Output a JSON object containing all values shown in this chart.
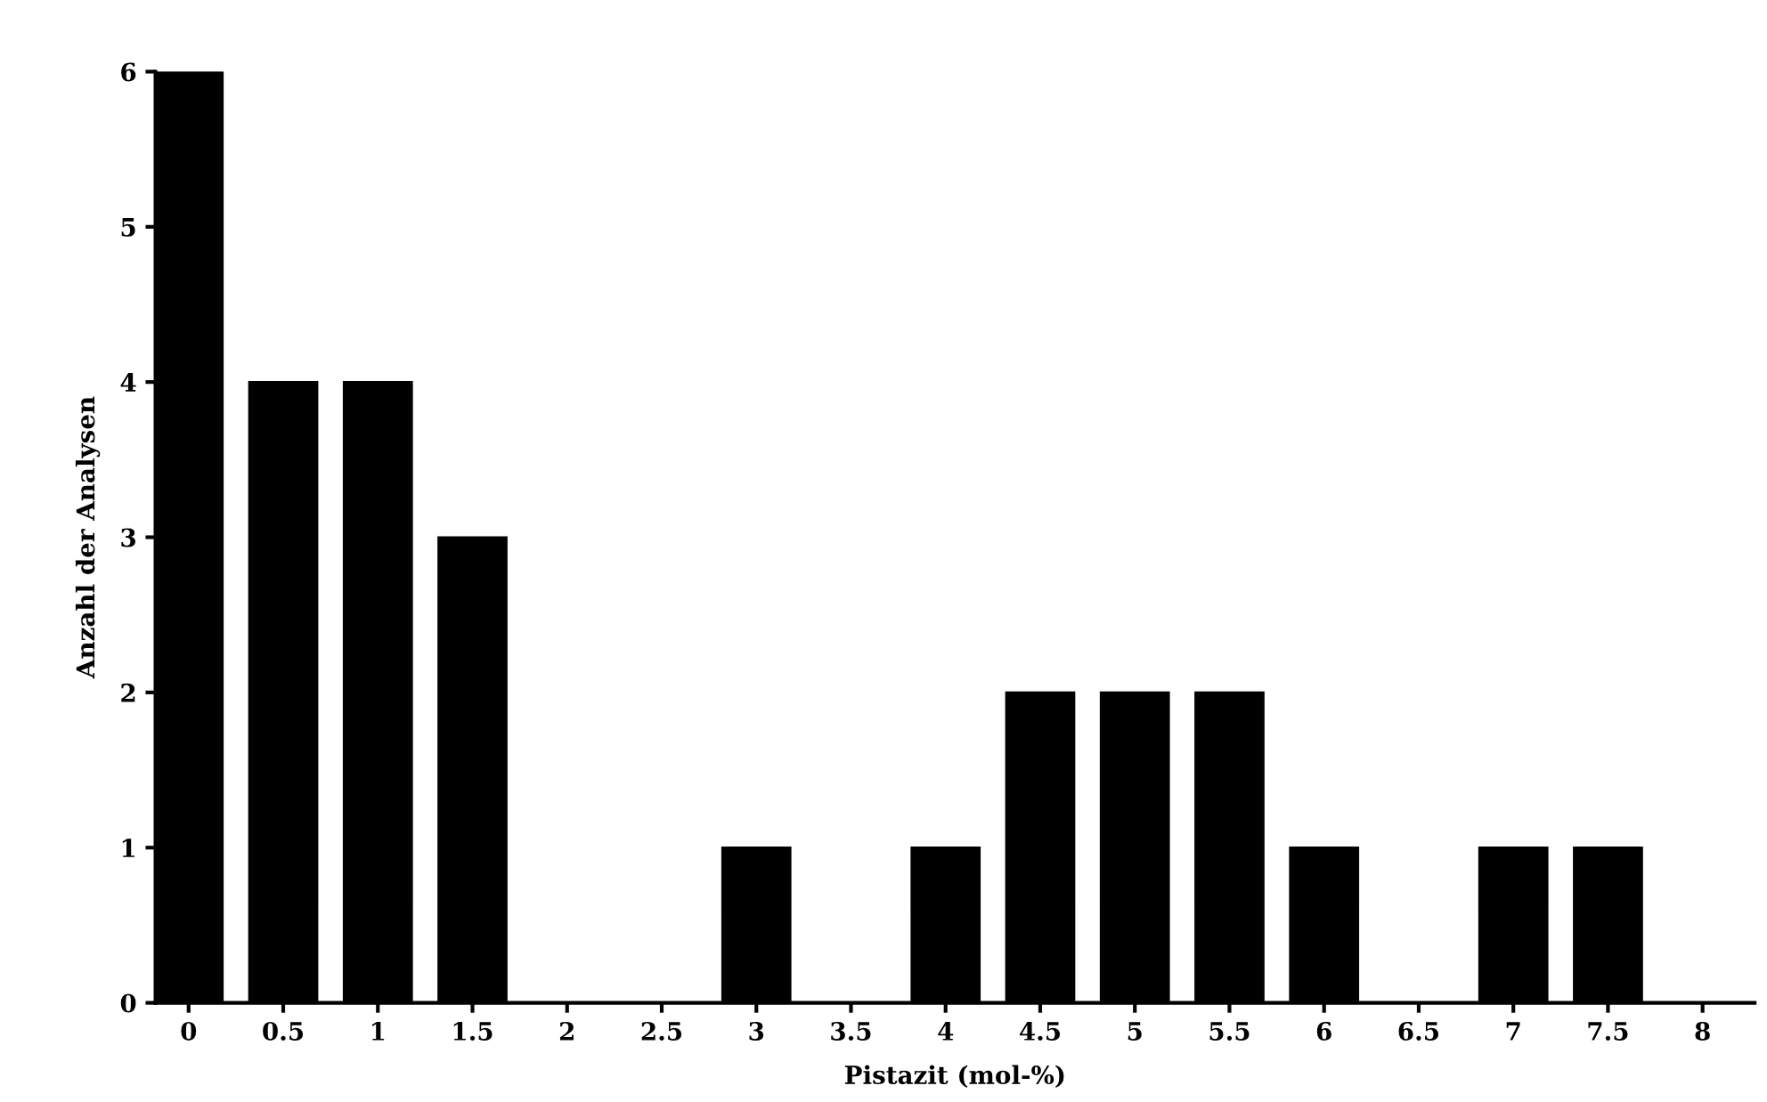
{
  "chart_data": {
    "type": "bar",
    "xlabel": "Pistazit (mol-%)",
    "ylabel": "Anzahl der Analysen",
    "categories": [
      "0",
      "0.5",
      "1",
      "1.5",
      "2",
      "2.5",
      "3",
      "3.5",
      "4",
      "4.5",
      "5",
      "5.5",
      "6",
      "6.5",
      "7",
      "7.5",
      "8"
    ],
    "values": [
      6,
      4,
      4,
      3,
      0,
      0,
      1,
      0,
      1,
      2,
      2,
      2,
      1,
      0,
      1,
      1,
      0
    ],
    "color": "#000000",
    "ylim": [
      0,
      6
    ],
    "yticks": [
      0,
      1,
      2,
      3,
      4,
      5,
      6
    ],
    "grid": false,
    "legend": false
  }
}
